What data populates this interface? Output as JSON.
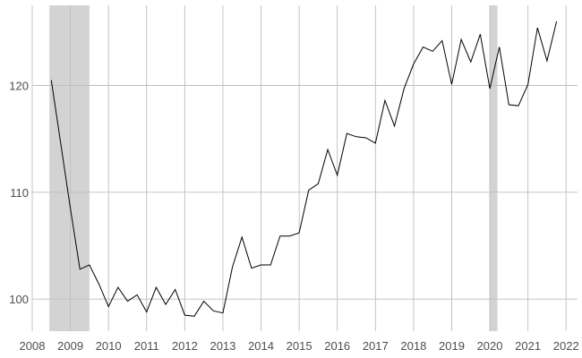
{
  "chart_data": {
    "type": "line",
    "title": "",
    "xlabel": "",
    "ylabel": "",
    "xlim": [
      2008,
      2022.3
    ],
    "ylim": [
      97,
      127.5
    ],
    "grid": true,
    "legend": "none",
    "x_ticks": [
      2008,
      2009,
      2010,
      2011,
      2012,
      2013,
      2014,
      2015,
      2016,
      2017,
      2018,
      2019,
      2020,
      2021,
      2022
    ],
    "x_tick_labels": [
      "2008",
      "2009",
      "2010",
      "2011",
      "2012",
      "2013",
      "2014",
      "2015",
      "2016",
      "2017",
      "2018",
      "2019",
      "2020",
      "2021",
      "2022"
    ],
    "y_ticks": [
      100,
      110,
      120
    ],
    "y_tick_labels": [
      "100",
      "110",
      "120"
    ],
    "shaded_periods": [
      {
        "start": 2008.45,
        "end": 2009.5
      },
      {
        "start": 2020.0,
        "end": 2020.2
      }
    ],
    "colors": {
      "line": "#000000",
      "shade": "#d3d3d3",
      "grid": "#bebebe",
      "tick_text": "#4d4d4d"
    },
    "series": [
      {
        "x": [
          2008.5,
          2008.75,
          2009.0,
          2009.25,
          2009.5,
          2009.75,
          2010.0,
          2010.25,
          2010.5,
          2010.75,
          2011.0,
          2011.25,
          2011.5,
          2011.75,
          2012.0,
          2012.25,
          2012.5,
          2012.75,
          2013.0,
          2013.25,
          2013.5,
          2013.75,
          2014.0,
          2014.25,
          2014.5,
          2014.75,
          2015.0,
          2015.25,
          2015.5,
          2015.75,
          2016.0,
          2016.25,
          2016.5,
          2016.75,
          2017.0,
          2017.25,
          2017.5,
          2017.75,
          2018.0,
          2018.25,
          2018.5,
          2018.75,
          2019.0,
          2019.25,
          2019.5,
          2019.75,
          2020.0,
          2020.25,
          2020.5,
          2020.75,
          2021.0,
          2021.25,
          2021.5,
          2021.75
        ],
        "values": [
          120.5,
          114.5,
          108.5,
          102.8,
          103.2,
          101.4,
          99.3,
          101.1,
          99.8,
          100.4,
          98.8,
          101.1,
          99.5,
          100.9,
          98.5,
          98.4,
          99.8,
          98.9,
          98.7,
          103.0,
          105.8,
          102.9,
          103.2,
          103.2,
          105.9,
          105.9,
          106.2,
          110.2,
          110.8,
          114.0,
          111.6,
          115.5,
          115.2,
          115.1,
          114.6,
          118.6,
          116.2,
          119.7,
          122.0,
          123.6,
          123.2,
          124.2,
          120.1,
          124.3,
          122.2,
          124.8,
          119.7,
          123.6,
          118.2,
          118.1,
          120.1,
          125.4,
          122.3,
          126.0
        ]
      }
    ]
  }
}
